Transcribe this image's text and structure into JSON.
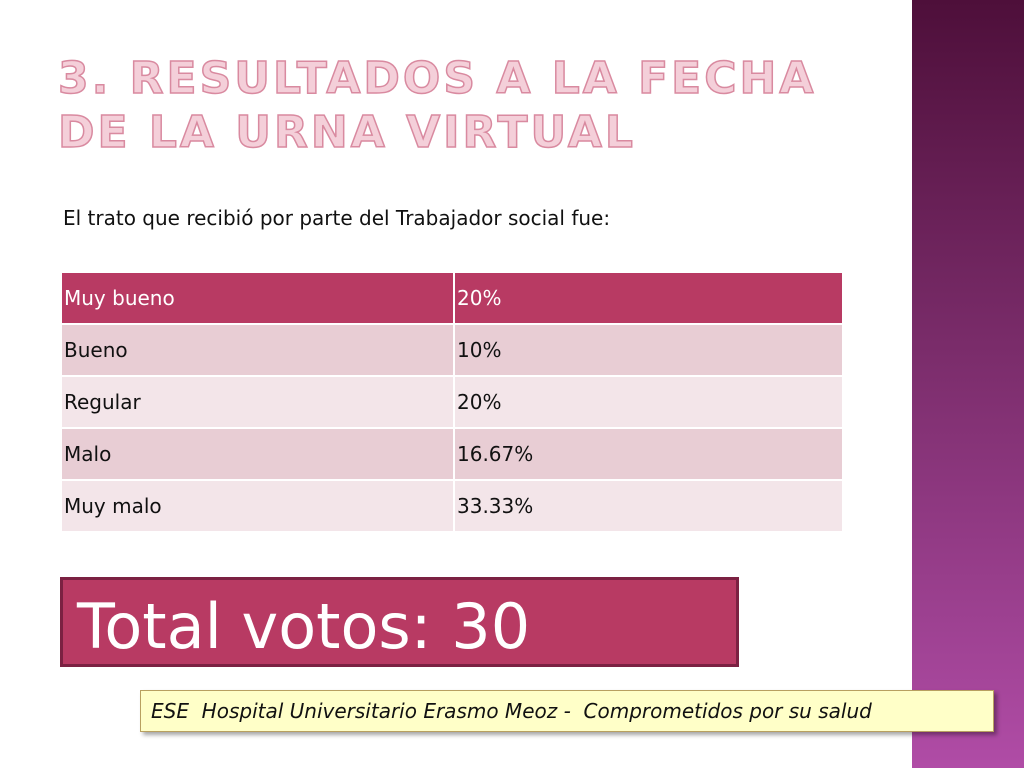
{
  "title": "3. RESULTADOS A LA FECHA DE LA URNA VIRTUAL",
  "subtitle": "El trato que recibió por parte del Trabajador social fue:",
  "table": {
    "rows": [
      [
        "Muy bueno",
        "20%"
      ],
      [
        "Bueno",
        "10%"
      ],
      [
        "Regular",
        "20%"
      ],
      [
        "Malo",
        "16.67%"
      ],
      [
        "Muy malo",
        "33.33%"
      ]
    ]
  },
  "total": "Total votos: 30",
  "footer": "ESE  Hospital Universitario Erasmo Meoz -  Comprometidos por su salud"
}
